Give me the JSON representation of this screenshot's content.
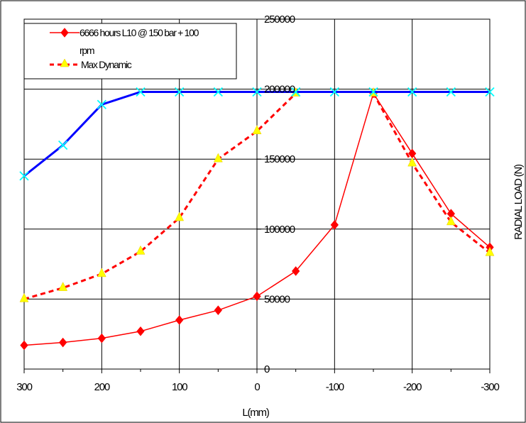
{
  "chart_data": {
    "type": "line",
    "x_ticks": [
      300,
      200,
      100,
      0,
      -100,
      -200,
      -300
    ],
    "y_ticks": [
      0,
      50000,
      100000,
      150000,
      200000,
      250000
    ],
    "x_tick_labels": [
      "300",
      "200",
      "100",
      "0",
      "-100",
      "-200",
      "-300"
    ],
    "y_tick_labels": [
      "0",
      "50000",
      "100000",
      "150000",
      "200000",
      "250000"
    ],
    "xlim": [
      300,
      -300
    ],
    "ylim": [
      0,
      250000
    ],
    "xlabel": "L(mm)",
    "ylabel": "RADIAL LOAD (N)",
    "grid": true,
    "legend_position": "top-left",
    "x": [
      300,
      250,
      200,
      150,
      100,
      50,
      0,
      -50,
      -100,
      -150,
      -200,
      -250,
      -300
    ],
    "series": [
      {
        "name": "6666 hours L10 @ 150 bar + 100 rpm",
        "legend_line1": "6666 hours L10 @ 150 bar + 100",
        "legend_line2": "rpm",
        "color": "#ff0000",
        "line_style": "solid",
        "marker": "diamond",
        "values": [
          17000,
          19000,
          22000,
          27000,
          35000,
          42000,
          52000,
          70000,
          103000,
          197000,
          154000,
          111000,
          87000
        ]
      },
      {
        "name": "Max Dynamic",
        "color": "#ff0000",
        "marker_color": "#ffff00",
        "line_style": "dashed",
        "marker": "triangle",
        "values": [
          50000,
          58000,
          68000,
          84000,
          108000,
          150000,
          170000,
          197000,
          null,
          197000,
          147000,
          105000,
          83000
        ]
      },
      {
        "name": "",
        "color": "#0000ff",
        "marker_color": "#00ffff",
        "line_style": "solid",
        "marker": "x",
        "values": [
          138000,
          160000,
          189000,
          198000,
          198000,
          198000,
          198000,
          198000,
          198000,
          198000,
          198000,
          198000,
          198000
        ]
      }
    ]
  }
}
